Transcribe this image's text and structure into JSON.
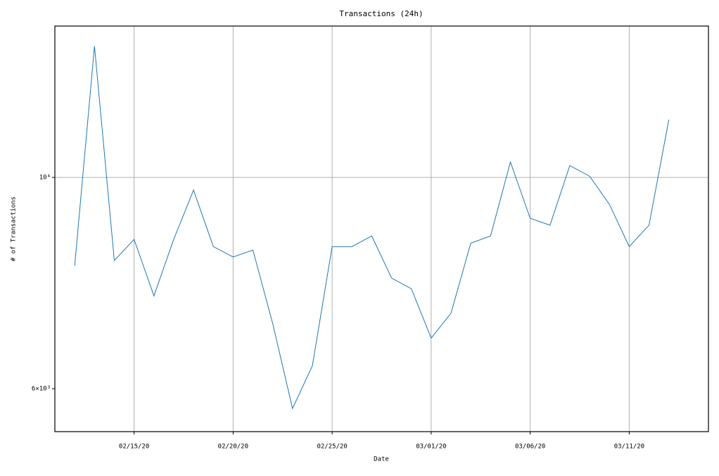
{
  "chart_data": {
    "type": "line",
    "title": "Transactions (24h)",
    "xlabel": "Date",
    "ylabel": "# of Transactions",
    "x": [
      "02/12/20",
      "02/13/20",
      "02/14/20",
      "02/15/20",
      "02/16/20",
      "02/17/20",
      "02/18/20",
      "02/19/20",
      "02/20/20",
      "02/21/20",
      "02/22/20",
      "02/23/20",
      "02/24/20",
      "02/25/20",
      "02/26/20",
      "02/27/20",
      "02/28/20",
      "02/29/20",
      "03/01/20",
      "03/02/20",
      "03/03/20",
      "03/04/20",
      "03/05/20",
      "03/06/20",
      "03/07/20",
      "03/08/20",
      "03/09/20",
      "03/10/20",
      "03/11/20",
      "03/12/20",
      "03/13/20"
    ],
    "series": [
      {
        "name": "Transactions",
        "color": "#1f77b4",
        "values": [
          8080,
          13740,
          8180,
          8610,
          7510,
          8610,
          9700,
          8460,
          8250,
          8390,
          7020,
          5720,
          6340,
          8460,
          8460,
          8680,
          7840,
          7640,
          6780,
          7200,
          8530,
          8680,
          10380,
          9060,
          8910,
          10290,
          10030,
          9370,
          8460,
          8910,
          11500
        ]
      }
    ],
    "xlim": [
      "02/11/20",
      "03/15/20"
    ],
    "xticks": [
      "02/15/20",
      "02/20/20",
      "02/25/20",
      "03/01/20",
      "03/06/20",
      "03/11/20"
    ],
    "ylim": [
      5408,
      14420
    ],
    "yscale": "log",
    "yticks": [
      {
        "value": 6000,
        "label": "6×10³"
      },
      {
        "value": 10000,
        "label": "10⁴"
      }
    ],
    "grid": true,
    "ygrid": "major"
  }
}
